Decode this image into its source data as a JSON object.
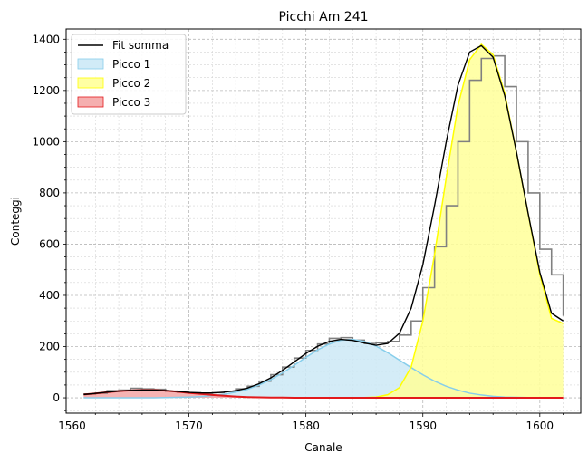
{
  "chart_data": {
    "type": "area",
    "title": "Picchi Am 241",
    "xlabel": "Canale",
    "ylabel": "Conteggi",
    "xlim": [
      1559.5,
      1603.5
    ],
    "ylim": [
      -60,
      1440
    ],
    "xticks": [
      1560,
      1570,
      1580,
      1590,
      1600
    ],
    "yticks": [
      0,
      200,
      400,
      600,
      800,
      1000,
      1200,
      1400
    ],
    "grid": true,
    "minor_grid": true,
    "legend_position": "top-left",
    "histogram": {
      "name": "",
      "color": "#808080",
      "bin_edges": [
        1561,
        1562,
        1563,
        1564,
        1565,
        1566,
        1567,
        1568,
        1569,
        1570,
        1571,
        1572,
        1573,
        1574,
        1575,
        1576,
        1577,
        1578,
        1579,
        1580,
        1581,
        1582,
        1583,
        1584,
        1585,
        1586,
        1587,
        1588,
        1589,
        1590,
        1591,
        1592,
        1593,
        1594,
        1595,
        1596,
        1597,
        1598,
        1599,
        1600,
        1601,
        1602
      ],
      "counts": [
        15,
        18,
        28,
        30,
        37,
        35,
        33,
        26,
        22,
        20,
        18,
        20,
        25,
        35,
        45,
        65,
        90,
        120,
        155,
        185,
        210,
        232,
        235,
        225,
        212,
        215,
        220,
        245,
        300,
        430,
        590,
        750,
        1000,
        1240,
        1325,
        1335,
        1215,
        1000,
        800,
        580,
        480,
        320
      ]
    },
    "series": [
      {
        "name": "Fit somma",
        "color": "#000000",
        "x": [
          1561,
          1562,
          1563,
          1564,
          1565,
          1566,
          1567,
          1568,
          1569,
          1570,
          1571,
          1572,
          1573,
          1574,
          1575,
          1576,
          1577,
          1578,
          1579,
          1580,
          1581,
          1582,
          1583,
          1584,
          1585,
          1586,
          1587,
          1588,
          1589,
          1590,
          1591,
          1592,
          1593,
          1594,
          1595,
          1596,
          1597,
          1598,
          1599,
          1600,
          1601,
          1602
        ],
        "y": [
          13,
          17,
          22,
          26,
          29,
          30,
          30,
          28,
          25,
          21,
          19,
          19,
          22,
          28,
          38,
          55,
          78,
          107,
          140,
          173,
          201,
          220,
          228,
          224,
          214,
          205,
          212,
          252,
          350,
          520,
          750,
          1000,
          1220,
          1350,
          1375,
          1330,
          1180,
          960,
          720,
          490,
          330,
          300
        ]
      },
      {
        "name": "Picco 1",
        "color": "#87ceeb",
        "fill": "#cce9f6",
        "x": [
          1561,
          1562,
          1563,
          1564,
          1565,
          1566,
          1567,
          1568,
          1569,
          1570,
          1571,
          1572,
          1573,
          1574,
          1575,
          1576,
          1577,
          1578,
          1579,
          1580,
          1581,
          1582,
          1583,
          1584,
          1585,
          1586,
          1587,
          1588,
          1589,
          1590,
          1591,
          1592,
          1593,
          1594,
          1595,
          1596,
          1597,
          1598,
          1599,
          1600,
          1601,
          1602
        ],
        "y": [
          0,
          0,
          0,
          0,
          0,
          0,
          0,
          1,
          2,
          3,
          5,
          9,
          14,
          22,
          33,
          50,
          71,
          97,
          127,
          158,
          187,
          210,
          225,
          228,
          220,
          202,
          176,
          147,
          118,
          90,
          65,
          45,
          30,
          18,
          11,
          6,
          3,
          2,
          1,
          0,
          0,
          0
        ]
      },
      {
        "name": "Picco 2",
        "color": "#ffff00",
        "fill": "#ffff99",
        "x": [
          1583,
          1584,
          1585,
          1586,
          1587,
          1588,
          1589,
          1590,
          1591,
          1592,
          1593,
          1594,
          1595,
          1596,
          1597,
          1598,
          1599,
          1600,
          1601,
          1602
        ],
        "y": [
          0,
          0,
          1,
          3,
          12,
          40,
          120,
          300,
          560,
          860,
          1140,
          1320,
          1380,
          1340,
          1190,
          960,
          720,
          480,
          310,
          290
        ]
      },
      {
        "name": "Picco 3",
        "color": "#e31a1c",
        "fill": "#f4a6a6",
        "x": [
          1561,
          1562,
          1563,
          1564,
          1565,
          1566,
          1567,
          1568,
          1569,
          1570,
          1571,
          1572,
          1573,
          1574,
          1575,
          1576,
          1577,
          1578,
          1579,
          1580,
          1581,
          1582,
          1583,
          1584,
          1585,
          1586,
          1587,
          1588,
          1589,
          1590,
          1591,
          1592,
          1593,
          1594,
          1595,
          1596,
          1597,
          1598,
          1599,
          1600,
          1601,
          1602
        ],
        "y": [
          13,
          17,
          22,
          26,
          29,
          30,
          30,
          28,
          24,
          19,
          15,
          11,
          8,
          5,
          3,
          2,
          1,
          1,
          0,
          0,
          0,
          0,
          0,
          0,
          0,
          0,
          0,
          0,
          0,
          0,
          0,
          0,
          0,
          0,
          0,
          0,
          0,
          0,
          0,
          0,
          0,
          0
        ]
      }
    ]
  }
}
